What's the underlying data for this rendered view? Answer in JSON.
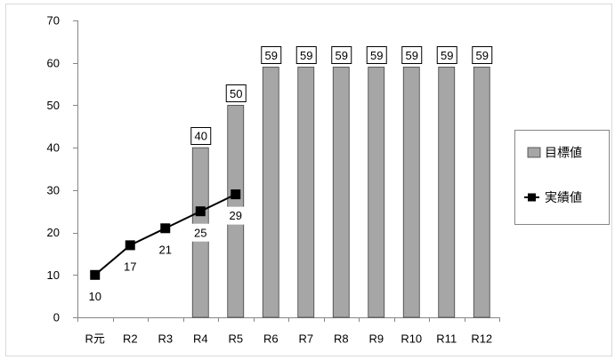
{
  "chart_data": {
    "type": "bar",
    "categories": [
      "R元",
      "R2",
      "R3",
      "R4",
      "R5",
      "R6",
      "R7",
      "R8",
      "R9",
      "R10",
      "R11",
      "R12"
    ],
    "series": [
      {
        "name": "目標値",
        "type": "bar",
        "color": "#a6a6a6",
        "values": [
          null,
          null,
          null,
          40,
          50,
          59,
          59,
          59,
          59,
          59,
          59,
          59
        ]
      },
      {
        "name": "実績値",
        "type": "line",
        "marker": "square",
        "color": "#000000",
        "values": [
          10,
          17,
          21,
          25,
          29,
          null,
          null,
          null,
          null,
          null,
          null,
          null
        ]
      }
    ],
    "ylim": [
      0,
      70
    ],
    "yticks": [
      0,
      10,
      20,
      30,
      40,
      50,
      60,
      70
    ],
    "grid": false,
    "legend": "right"
  }
}
